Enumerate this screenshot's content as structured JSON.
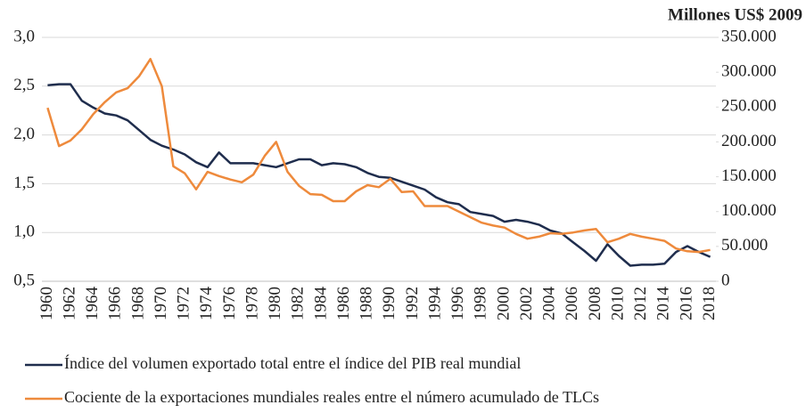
{
  "chart_data": {
    "type": "line",
    "y2_label": "Millones US$ 2009",
    "categories": [
      "1960",
      null,
      "1962",
      null,
      "1964",
      null,
      "1966",
      null,
      "1968",
      null,
      "1970",
      null,
      "1972",
      null,
      "1974",
      null,
      "1976",
      null,
      "1978",
      null,
      "1980",
      null,
      "1982",
      null,
      "1984",
      null,
      "1986",
      null,
      "1988",
      null,
      "1990",
      null,
      "1992",
      null,
      "1994",
      null,
      "1996",
      null,
      "1998",
      null,
      "2000",
      null,
      "2002",
      null,
      "2004",
      null,
      "2006",
      null,
      "2008",
      null,
      "2010",
      null,
      "2012",
      null,
      "2014",
      null,
      "2016",
      null,
      "2018"
    ],
    "series": [
      {
        "name": "Índice del volumen exportado total entre el índice del PIB real mundial",
        "color": "#1f2d4d",
        "axis": "y",
        "values": [
          2.51,
          2.52,
          2.52,
          2.35,
          2.28,
          2.22,
          2.2,
          2.15,
          2.05,
          1.95,
          1.89,
          1.85,
          1.8,
          1.72,
          1.67,
          1.82,
          1.71,
          1.71,
          1.71,
          1.69,
          1.67,
          1.71,
          1.75,
          1.75,
          1.69,
          1.71,
          1.7,
          1.67,
          1.61,
          1.57,
          1.56,
          1.52,
          1.48,
          1.44,
          1.36,
          1.31,
          1.29,
          1.21,
          1.19,
          1.17,
          1.11,
          1.13,
          1.11,
          1.08,
          1.02,
          0.99,
          0.9,
          0.81,
          0.71,
          0.88,
          0.76,
          0.66,
          0.67,
          0.67,
          0.68,
          0.8,
          0.86,
          0.8,
          0.75
        ]
      },
      {
        "name": "Cociente de la exportaciones mundiales reales entre el número acumulado de TLCs",
        "color": "#ee8a3c",
        "axis": "y2",
        "values": [
          249000,
          194000,
          202000,
          218000,
          240000,
          257000,
          271000,
          277000,
          294000,
          319000,
          280000,
          165000,
          155000,
          132000,
          157000,
          151000,
          146000,
          142000,
          153000,
          180000,
          200000,
          157000,
          137000,
          125000,
          124000,
          115000,
          115000,
          129000,
          138000,
          135000,
          147000,
          128000,
          129000,
          108000,
          108000,
          108000,
          100000,
          92000,
          84000,
          80000,
          77000,
          68000,
          61000,
          64000,
          69000,
          68000,
          70000,
          73000,
          75000,
          56000,
          61000,
          68000,
          64000,
          61000,
          58000,
          47000,
          43000,
          42000,
          45000
        ]
      }
    ],
    "ylim": [
      0.5,
      3.0
    ],
    "yticks": [
      {
        "value": 0.5,
        "label": "0,5"
      },
      {
        "value": 1.0,
        "label": "1,0"
      },
      {
        "value": 1.5,
        "label": "1,5"
      },
      {
        "value": 2.0,
        "label": "2,0"
      },
      {
        "value": 2.5,
        "label": "2,5"
      },
      {
        "value": 3.0,
        "label": "3,0"
      }
    ],
    "y2lim": [
      0,
      350000
    ],
    "y2ticks": [
      0,
      {
        "value": 50000,
        "label": "50.000"
      },
      {
        "value": 100000,
        "label": "100.000"
      },
      {
        "value": 150000,
        "label": "150.000"
      },
      {
        "value": 200000,
        "label": "200.000"
      },
      {
        "value": 250000,
        "label": "250.000"
      },
      {
        "value": 300000,
        "label": "300.000"
      },
      {
        "value": 350000,
        "label": "350.000"
      }
    ],
    "grid": true
  }
}
